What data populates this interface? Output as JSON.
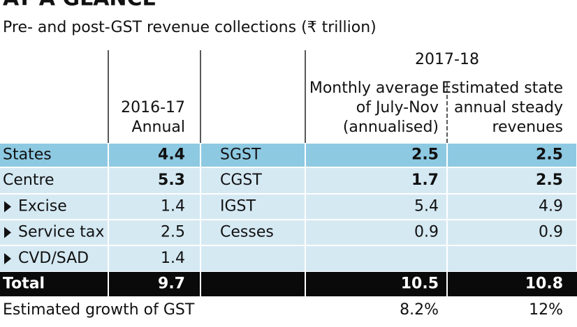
{
  "header": {
    "title": "AT A GLANCE",
    "subtitle": "Pre- and post-GST revenue collections (₹ trillion)"
  },
  "table": {
    "group_header": "2017-18",
    "columns": [
      [
        "2016-17",
        "Annual"
      ],
      [
        "Monthly average",
        "of July-Nov",
        "(annualised)"
      ],
      [
        "Estimated state",
        "annual steady",
        "revenues"
      ]
    ],
    "rows": [
      [
        "States",
        "4.4",
        "SGST",
        "2.5",
        "2.5"
      ],
      [
        "Centre",
        "5.3",
        "CGST",
        "1.7",
        "2.5"
      ],
      [
        "Excise",
        "1.4",
        "IGST",
        "5.4",
        "4.9"
      ],
      [
        "Service tax",
        "2.5",
        "Cesses",
        "0.9",
        "0.9"
      ],
      [
        "CVD/SAD",
        "1.4",
        null,
        null,
        null
      ]
    ],
    "total": [
      "Total",
      "9.7",
      "10.5",
      "10.8"
    ],
    "growth": [
      "Estimated growth of GST",
      "8.2%",
      "12%"
    ]
  }
}
